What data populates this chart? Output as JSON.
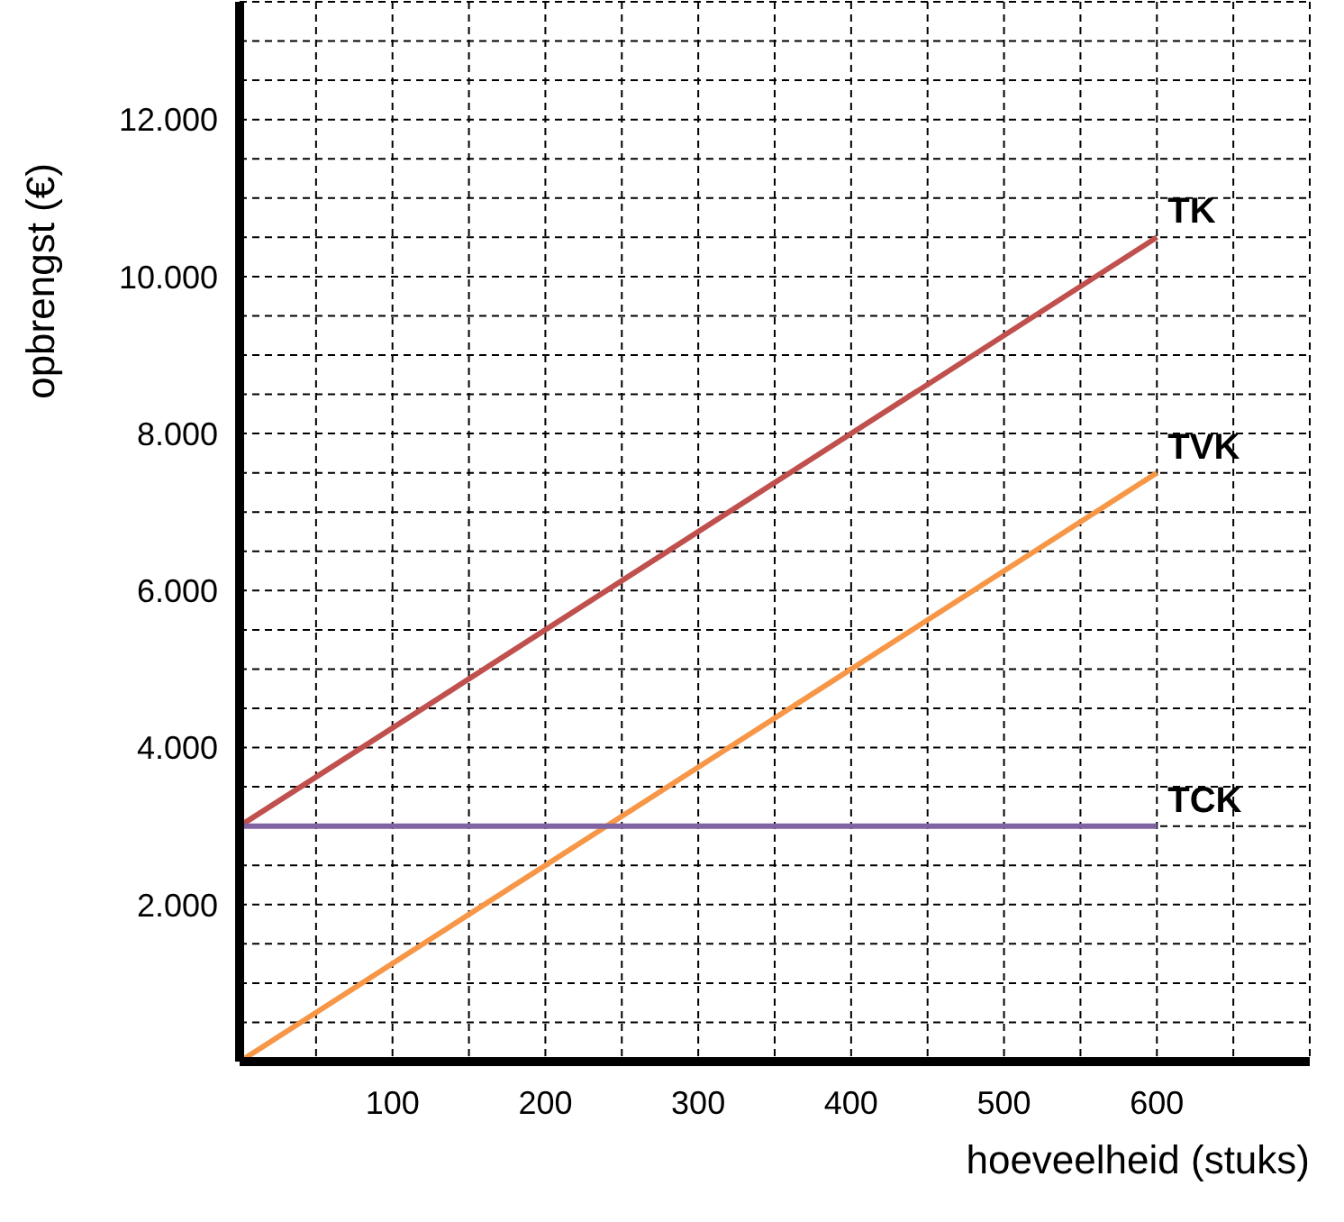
{
  "chart_data": {
    "type": "line",
    "xlabel": "hoeveelheid (stuks)",
    "ylabel": "opbrengst (€)",
    "x": [
      0,
      600
    ],
    "series": [
      {
        "name": "TK",
        "color": "#c0504d",
        "values": [
          3000,
          10500
        ]
      },
      {
        "name": "TVK",
        "color": "#f79646",
        "values": [
          0,
          7500
        ]
      },
      {
        "name": "TCK",
        "color": "#8064a2",
        "values": [
          3000,
          3000
        ]
      }
    ],
    "xlim": [
      0,
      700
    ],
    "xticks": [
      {
        "value": 50,
        "label": null
      },
      100,
      {
        "value": 150,
        "label": null
      },
      200,
      {
        "value": 250,
        "label": null
      },
      300,
      {
        "value": 350,
        "label": null
      },
      400,
      {
        "value": 450,
        "label": null
      },
      500,
      {
        "value": 550,
        "label": null
      },
      600,
      {
        "value": 650,
        "label": null
      },
      {
        "value": 700,
        "label": null
      }
    ],
    "ylim": [
      0,
      13500
    ],
    "yticks": [
      {
        "value": 500,
        "label": null
      },
      {
        "value": 1000,
        "label": null
      },
      {
        "value": 1500,
        "label": null
      },
      {
        "value": 2000,
        "label": "2.000"
      },
      {
        "value": 2500,
        "label": null
      },
      {
        "value": 3000,
        "label": null
      },
      {
        "value": 3500,
        "label": null
      },
      {
        "value": 4000,
        "label": "4.000"
      },
      {
        "value": 4500,
        "label": null
      },
      {
        "value": 5000,
        "label": null
      },
      {
        "value": 5500,
        "label": null
      },
      {
        "value": 6000,
        "label": "6.000"
      },
      {
        "value": 6500,
        "label": null
      },
      {
        "value": 7000,
        "label": null
      },
      {
        "value": 7500,
        "label": null
      },
      {
        "value": 8000,
        "label": "8.000"
      },
      {
        "value": 8500,
        "label": null
      },
      {
        "value": 9000,
        "label": null
      },
      {
        "value": 9500,
        "label": null
      },
      {
        "value": 10000,
        "label": "10.000"
      },
      {
        "value": 10500,
        "label": null
      },
      {
        "value": 11000,
        "label": null
      },
      {
        "value": 11500,
        "label": null
      },
      {
        "value": 12000,
        "label": "12.000"
      },
      {
        "value": 12500,
        "label": null
      },
      {
        "value": 13000,
        "label": null
      },
      {
        "value": 13500,
        "label": null
      }
    ],
    "grid": true
  }
}
